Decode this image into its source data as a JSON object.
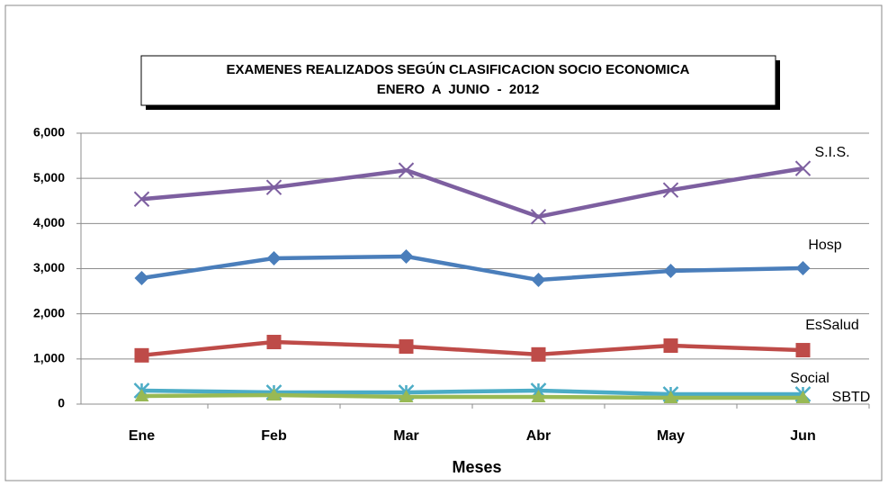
{
  "chart_data": {
    "type": "line",
    "title": "EXAMENES REALIZADOS SEGÚN CLASIFICACION SOCIO ECONOMICA",
    "subtitle": "ENERO  A  JUNIO  -  2012",
    "x_label": "Meses",
    "categories": [
      "Ene",
      "Feb",
      "Mar",
      "Abr",
      "May",
      "Jun"
    ],
    "series": [
      {
        "name": "S.I.S.",
        "color": "#7d5fa0",
        "marker": "x",
        "values": [
          4540,
          4800,
          5180,
          4150,
          4740,
          5220
        ]
      },
      {
        "name": "Hosp",
        "color": "#4a7ebb",
        "marker": "diamond",
        "values": [
          2790,
          3230,
          3270,
          2750,
          2950,
          3010
        ]
      },
      {
        "name": "EsSalud",
        "color": "#be4b48",
        "marker": "square",
        "values": [
          1080,
          1375,
          1275,
          1100,
          1295,
          1195
        ]
      },
      {
        "name": "Social",
        "color": "#4bacc6",
        "marker": "star",
        "values": [
          300,
          260,
          260,
          300,
          220,
          220
        ]
      },
      {
        "name": "SBTD",
        "color": "#98b954",
        "marker": "triangle",
        "values": [
          180,
          200,
          160,
          160,
          140,
          140
        ]
      }
    ],
    "ylim": [
      0,
      6000
    ],
    "yticks": [
      0,
      {
        "value": 1000,
        "label": "1,000"
      },
      {
        "value": 2000,
        "label": "2,000"
      },
      {
        "value": 3000,
        "label": "3,000"
      },
      {
        "value": 4000,
        "label": "4,000"
      },
      {
        "value": 5000,
        "label": "5,000"
      },
      {
        "value": 6000,
        "label": "6,000"
      }
    ],
    "grid": true
  }
}
